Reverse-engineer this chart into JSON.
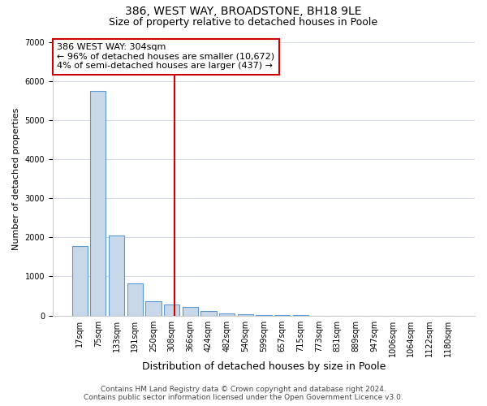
{
  "title": "386, WEST WAY, BROADSTONE, BH18 9LE",
  "subtitle": "Size of property relative to detached houses in Poole",
  "xlabel": "Distribution of detached houses by size in Poole",
  "ylabel": "Number of detached properties",
  "bar_labels": [
    "17sqm",
    "75sqm",
    "133sqm",
    "191sqm",
    "250sqm",
    "308sqm",
    "366sqm",
    "424sqm",
    "482sqm",
    "540sqm",
    "599sqm",
    "657sqm",
    "715sqm",
    "773sqm",
    "831sqm",
    "889sqm",
    "947sqm",
    "1006sqm",
    "1064sqm",
    "1122sqm",
    "1180sqm"
  ],
  "bar_heights": [
    1780,
    5750,
    2050,
    820,
    370,
    275,
    220,
    110,
    60,
    30,
    15,
    5,
    2,
    0,
    0,
    0,
    0,
    0,
    0,
    0,
    0
  ],
  "bar_color": "#c8d8e8",
  "bar_edgecolor": "#5a9ad4",
  "property_line_x": 5.17,
  "property_line_color": "#cc0000",
  "annotation_line1": "386 WEST WAY: 304sqm",
  "annotation_line2": "← 96% of detached houses are smaller (10,672)",
  "annotation_line3": "4% of semi-detached houses are larger (437) →",
  "annotation_box_color": "#cc0000",
  "ylim": [
    0,
    7000
  ],
  "yticks": [
    0,
    1000,
    2000,
    3000,
    4000,
    5000,
    6000,
    7000
  ],
  "footer_line1": "Contains HM Land Registry data © Crown copyright and database right 2024.",
  "footer_line2": "Contains public sector information licensed under the Open Government Licence v3.0.",
  "background_color": "#ffffff",
  "grid_color": "#d0d8e8",
  "title_fontsize": 10,
  "subtitle_fontsize": 9,
  "xlabel_fontsize": 9,
  "ylabel_fontsize": 8,
  "tick_fontsize": 7,
  "annotation_fontsize": 8,
  "footer_fontsize": 6.5
}
